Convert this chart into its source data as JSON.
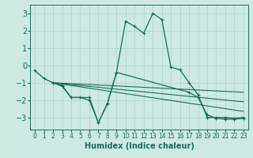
{
  "title": "",
  "xlabel": "Humidex (Indice chaleur)",
  "ylabel": "",
  "bg_color": "#cce9e4",
  "line_color": "#1a6b5e",
  "grid_color": "#aad4cc",
  "xlim": [
    -0.5,
    23.5
  ],
  "ylim": [
    -3.7,
    3.5
  ],
  "xticks": [
    0,
    1,
    2,
    3,
    4,
    5,
    6,
    7,
    8,
    9,
    10,
    11,
    12,
    13,
    14,
    15,
    16,
    17,
    18,
    19,
    20,
    21,
    22,
    23
  ],
  "yticks": [
    -3,
    -2,
    -1,
    0,
    1,
    2,
    3
  ],
  "series": [
    {
      "x": [
        0,
        1,
        2,
        3,
        4,
        5,
        6,
        7,
        8,
        9,
        10,
        11,
        12,
        13,
        14,
        15,
        16,
        17,
        18,
        19,
        20,
        21,
        22,
        23
      ],
      "y": [
        -0.3,
        -0.75,
        -1.0,
        -1.2,
        -1.85,
        -1.85,
        -2.0,
        -3.3,
        -2.2,
        -0.4,
        2.55,
        2.25,
        1.85,
        3.0,
        2.65,
        -0.1,
        -0.25,
        -1.0,
        -1.7,
        -3.0,
        -3.0,
        -3.0,
        -3.05,
        -3.0
      ],
      "marker": true
    },
    {
      "x": [
        2,
        3,
        4,
        5,
        6,
        7,
        8,
        9,
        17,
        18,
        19,
        20,
        21,
        22,
        23
      ],
      "y": [
        -1.0,
        -1.15,
        -1.85,
        -1.85,
        -1.85,
        -3.3,
        -2.2,
        -0.4,
        -1.55,
        -1.85,
        -2.85,
        -3.05,
        -3.1,
        -3.1,
        -3.05
      ],
      "marker": true
    },
    {
      "x": [
        2,
        23
      ],
      "y": [
        -1.0,
        -1.55
      ],
      "marker": false
    },
    {
      "x": [
        2,
        23
      ],
      "y": [
        -1.0,
        -2.1
      ],
      "marker": false
    },
    {
      "x": [
        2,
        23
      ],
      "y": [
        -1.0,
        -2.65
      ],
      "marker": false
    }
  ]
}
